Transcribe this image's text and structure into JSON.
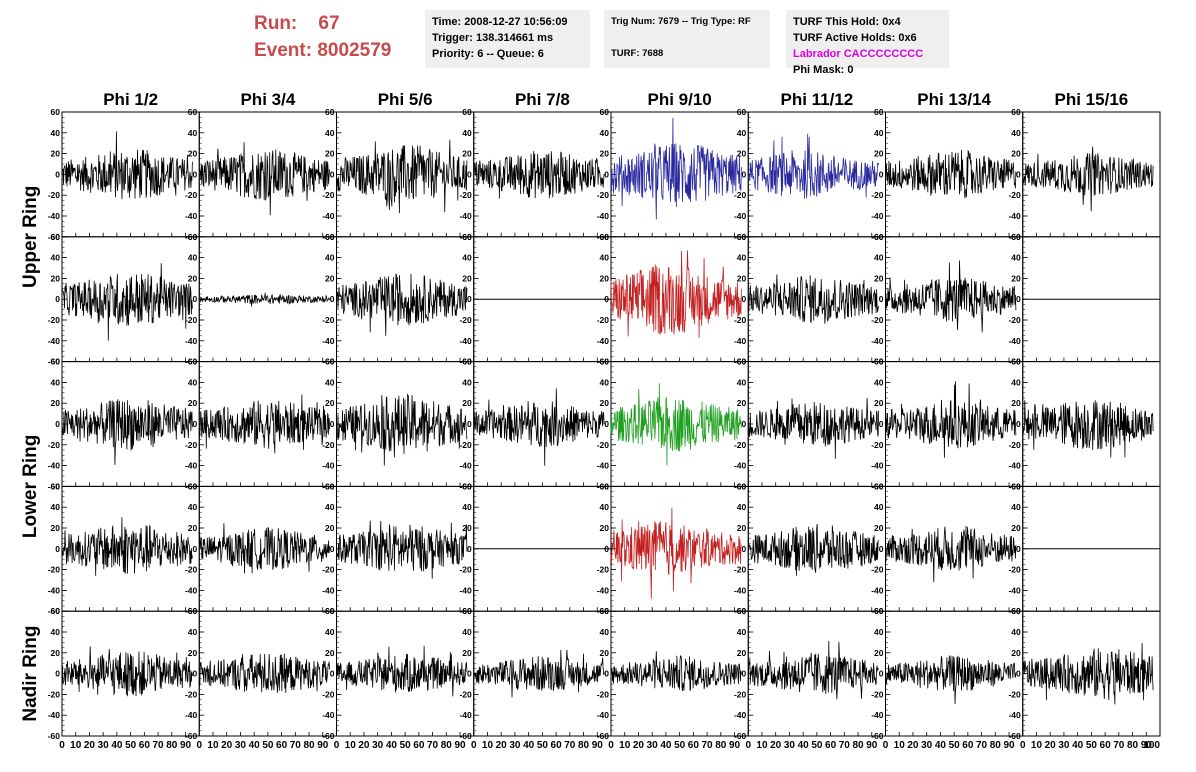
{
  "header": {
    "run_label": "Run:",
    "run_value": "67",
    "event_label": "Event:",
    "event_value": "8002579"
  },
  "info_box_1": {
    "time": "Time: 2008-12-27 10:56:09",
    "trigger": "Trigger: 138.314661 ms",
    "priority": "Priority: 6 -- Queue: 6"
  },
  "info_box_2": {
    "trig": "Trig Num: 7679 -- Trig Type: RF",
    "turf": "TURF: 7688"
  },
  "info_box_3": {
    "this_hold": "TURF This Hold: 0x4",
    "active_holds": "TURF Active Holds: 0x6",
    "labrador": "Labrador CACCCCCCCC",
    "phi_mask": "Phi Mask: 0"
  },
  "colors": {
    "labrador": "#e000e0",
    "run_text": "#c94a4a",
    "blue_trace": "#2a2aa0",
    "red_trace": "#c42020",
    "green_trace": "#20a020",
    "black_trace": "#000000"
  },
  "chart_data": {
    "type": "line",
    "columns": [
      "Phi 1/2",
      "Phi 3/4",
      "Phi 5/6",
      "Phi 7/8",
      "Phi 9/10",
      "Phi 11/12",
      "Phi 13/14",
      "Phi 15/16"
    ],
    "ring_labels": [
      "Upper Ring",
      "Lower Ring",
      "Nadir Ring"
    ],
    "ylim": [
      -60,
      60
    ],
    "yticks": [
      60,
      40,
      20,
      0,
      -20,
      -40,
      -60
    ],
    "xlim": [
      0,
      100
    ],
    "xticks": [
      0,
      10,
      20,
      30,
      40,
      50,
      60,
      70,
      80,
      90
    ],
    "last_xtick": "100",
    "grid": false,
    "panels": [
      {
        "row": 0,
        "col": 0,
        "color": "black",
        "amplitude": 16,
        "center_x": 50,
        "flat": false
      },
      {
        "row": 0,
        "col": 1,
        "color": "black",
        "amplitude": 16,
        "center_x": 50,
        "flat": false
      },
      {
        "row": 0,
        "col": 2,
        "color": "black",
        "amplitude": 18,
        "center_x": 50,
        "flat": false
      },
      {
        "row": 0,
        "col": 3,
        "color": "black",
        "amplitude": 15,
        "center_x": 50,
        "flat": false
      },
      {
        "row": 0,
        "col": 4,
        "color": "blue",
        "amplitude": 20,
        "center_x": 50,
        "flat": false
      },
      {
        "row": 0,
        "col": 5,
        "color": "blue",
        "amplitude": 15,
        "center_x": 40,
        "flat": false
      },
      {
        "row": 0,
        "col": 6,
        "color": "black",
        "amplitude": 15,
        "center_x": 50,
        "flat": false
      },
      {
        "row": 0,
        "col": 7,
        "color": "black",
        "amplitude": 13,
        "center_x": 50,
        "flat": false
      },
      {
        "row": 1,
        "col": 0,
        "color": "black",
        "amplitude": 17,
        "center_x": 50,
        "flat": false
      },
      {
        "row": 1,
        "col": 1,
        "color": "black",
        "amplitude": 3,
        "center_x": 50,
        "flat": false
      },
      {
        "row": 1,
        "col": 2,
        "color": "black",
        "amplitude": 16,
        "center_x": 50,
        "flat": false
      },
      {
        "row": 1,
        "col": 3,
        "color": "black",
        "amplitude": 0,
        "center_x": 50,
        "flat": true
      },
      {
        "row": 1,
        "col": 4,
        "color": "red",
        "amplitude": 22,
        "center_x": 40,
        "flat": false
      },
      {
        "row": 1,
        "col": 5,
        "color": "black",
        "amplitude": 15,
        "center_x": 50,
        "flat": false
      },
      {
        "row": 1,
        "col": 6,
        "color": "black",
        "amplitude": 14,
        "center_x": 50,
        "flat": false
      },
      {
        "row": 1,
        "col": 7,
        "color": "black",
        "amplitude": 0,
        "center_x": 50,
        "flat": true
      },
      {
        "row": 2,
        "col": 0,
        "color": "black",
        "amplitude": 16,
        "center_x": 50,
        "flat": false
      },
      {
        "row": 2,
        "col": 1,
        "color": "black",
        "amplitude": 15,
        "center_x": 50,
        "flat": false
      },
      {
        "row": 2,
        "col": 2,
        "color": "black",
        "amplitude": 18,
        "center_x": 50,
        "flat": false
      },
      {
        "row": 2,
        "col": 3,
        "color": "black",
        "amplitude": 14,
        "center_x": 50,
        "flat": false
      },
      {
        "row": 2,
        "col": 4,
        "color": "green",
        "amplitude": 17,
        "center_x": 45,
        "flat": false
      },
      {
        "row": 2,
        "col": 5,
        "color": "black",
        "amplitude": 14,
        "center_x": 50,
        "flat": false
      },
      {
        "row": 2,
        "col": 6,
        "color": "black",
        "amplitude": 15,
        "center_x": 50,
        "flat": false
      },
      {
        "row": 2,
        "col": 7,
        "color": "black",
        "amplitude": 16,
        "center_x": 50,
        "flat": false
      },
      {
        "row": 3,
        "col": 0,
        "color": "black",
        "amplitude": 16,
        "center_x": 50,
        "flat": false
      },
      {
        "row": 3,
        "col": 1,
        "color": "black",
        "amplitude": 13,
        "center_x": 50,
        "flat": false
      },
      {
        "row": 3,
        "col": 2,
        "color": "black",
        "amplitude": 15,
        "center_x": 50,
        "flat": false
      },
      {
        "row": 3,
        "col": 3,
        "color": "black",
        "amplitude": 0,
        "center_x": 50,
        "flat": true
      },
      {
        "row": 3,
        "col": 4,
        "color": "red",
        "amplitude": 17,
        "center_x": 35,
        "flat": false
      },
      {
        "row": 3,
        "col": 5,
        "color": "black",
        "amplitude": 15,
        "center_x": 50,
        "flat": false
      },
      {
        "row": 3,
        "col": 6,
        "color": "black",
        "amplitude": 14,
        "center_x": 50,
        "flat": false
      },
      {
        "row": 3,
        "col": 7,
        "color": "black",
        "amplitude": 0,
        "center_x": 50,
        "flat": true
      },
      {
        "row": 4,
        "col": 0,
        "color": "black",
        "amplitude": 14,
        "center_x": 50,
        "flat": false
      },
      {
        "row": 4,
        "col": 1,
        "color": "black",
        "amplitude": 13,
        "center_x": 50,
        "flat": false
      },
      {
        "row": 4,
        "col": 2,
        "color": "black",
        "amplitude": 12,
        "center_x": 50,
        "flat": false
      },
      {
        "row": 4,
        "col": 3,
        "color": "black",
        "amplitude": 11,
        "center_x": 50,
        "flat": false
      },
      {
        "row": 4,
        "col": 4,
        "color": "black",
        "amplitude": 11,
        "center_x": 50,
        "flat": false
      },
      {
        "row": 4,
        "col": 5,
        "color": "black",
        "amplitude": 13,
        "center_x": 50,
        "flat": false
      },
      {
        "row": 4,
        "col": 6,
        "color": "black",
        "amplitude": 11,
        "center_x": 50,
        "flat": false
      },
      {
        "row": 4,
        "col": 7,
        "color": "black",
        "amplitude": 16,
        "center_x": 60,
        "flat": false
      }
    ]
  }
}
